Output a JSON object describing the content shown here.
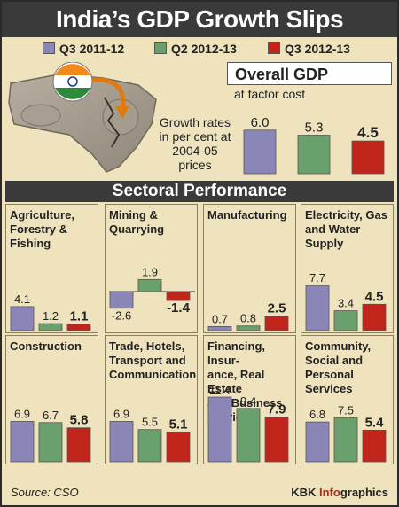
{
  "title": "India’s GDP Growth Slips",
  "legend": [
    {
      "label": "Q3 2011-12",
      "color": "#8a86b8"
    },
    {
      "label": "Q2 2012-13",
      "color": "#6aa06c"
    },
    {
      "label": "Q3 2012-13",
      "color": "#c0241b"
    }
  ],
  "illustration": {
    "note": "Growth rates in per cent at 2004-05 prices"
  },
  "overall": {
    "title": "Overall GDP",
    "subtitle": "at factor cost"
  },
  "sectoral_title": "Sectoral Performance",
  "source": "Source: CSO",
  "credit": {
    "prefix": "KBK ",
    "info": "Info",
    "suffix": "graphics"
  },
  "chart_data": [
    {
      "type": "bar",
      "title": "Overall GDP",
      "categories": [
        "Q3 2011-12",
        "Q2 2012-13",
        "Q3 2012-13"
      ],
      "values": [
        6.0,
        5.3,
        4.5
      ]
    },
    {
      "type": "bar",
      "title": "Agriculture, Forestry & Fishing",
      "categories": [
        "Q3 2011-12",
        "Q2 2012-13",
        "Q3 2012-13"
      ],
      "values": [
        4.1,
        1.2,
        1.1
      ]
    },
    {
      "type": "bar",
      "title": "Mining & Quarrying",
      "categories": [
        "Q3 2011-12",
        "Q2 2012-13",
        "Q3 2012-13"
      ],
      "values": [
        -2.6,
        1.9,
        -1.4
      ]
    },
    {
      "type": "bar",
      "title": "Manufacturing",
      "categories": [
        "Q3 2011-12",
        "Q2 2012-13",
        "Q3 2012-13"
      ],
      "values": [
        0.7,
        0.8,
        2.5
      ]
    },
    {
      "type": "bar",
      "title": "Electricity, Gas and Water Supply",
      "categories": [
        "Q3 2011-12",
        "Q2 2012-13",
        "Q3 2012-13"
      ],
      "values": [
        7.7,
        3.4,
        4.5
      ]
    },
    {
      "type": "bar",
      "title": "Construction",
      "categories": [
        "Q3 2011-12",
        "Q2 2012-13",
        "Q3 2012-13"
      ],
      "values": [
        6.9,
        6.7,
        5.8
      ]
    },
    {
      "type": "bar",
      "title": "Trade, Hotels, Transport and Communication",
      "categories": [
        "Q3 2011-12",
        "Q2 2012-13",
        "Q3 2012-13"
      ],
      "values": [
        6.9,
        5.5,
        5.1
      ]
    },
    {
      "type": "bar",
      "title": "Financing, Insurance, Real Estate and Business Services",
      "title_lines": [
        "Financing, Insur-",
        "ance, Real Estate",
        "and Business",
        "Services"
      ],
      "categories": [
        "Q3 2011-12",
        "Q2 2012-13",
        "Q3 2012-13"
      ],
      "values": [
        11.4,
        9.4,
        7.9
      ]
    },
    {
      "type": "bar",
      "title": "Community, Social and Personal Services",
      "categories": [
        "Q3 2011-12",
        "Q2 2012-13",
        "Q3 2012-13"
      ],
      "values": [
        6.8,
        7.5,
        5.4
      ]
    }
  ]
}
